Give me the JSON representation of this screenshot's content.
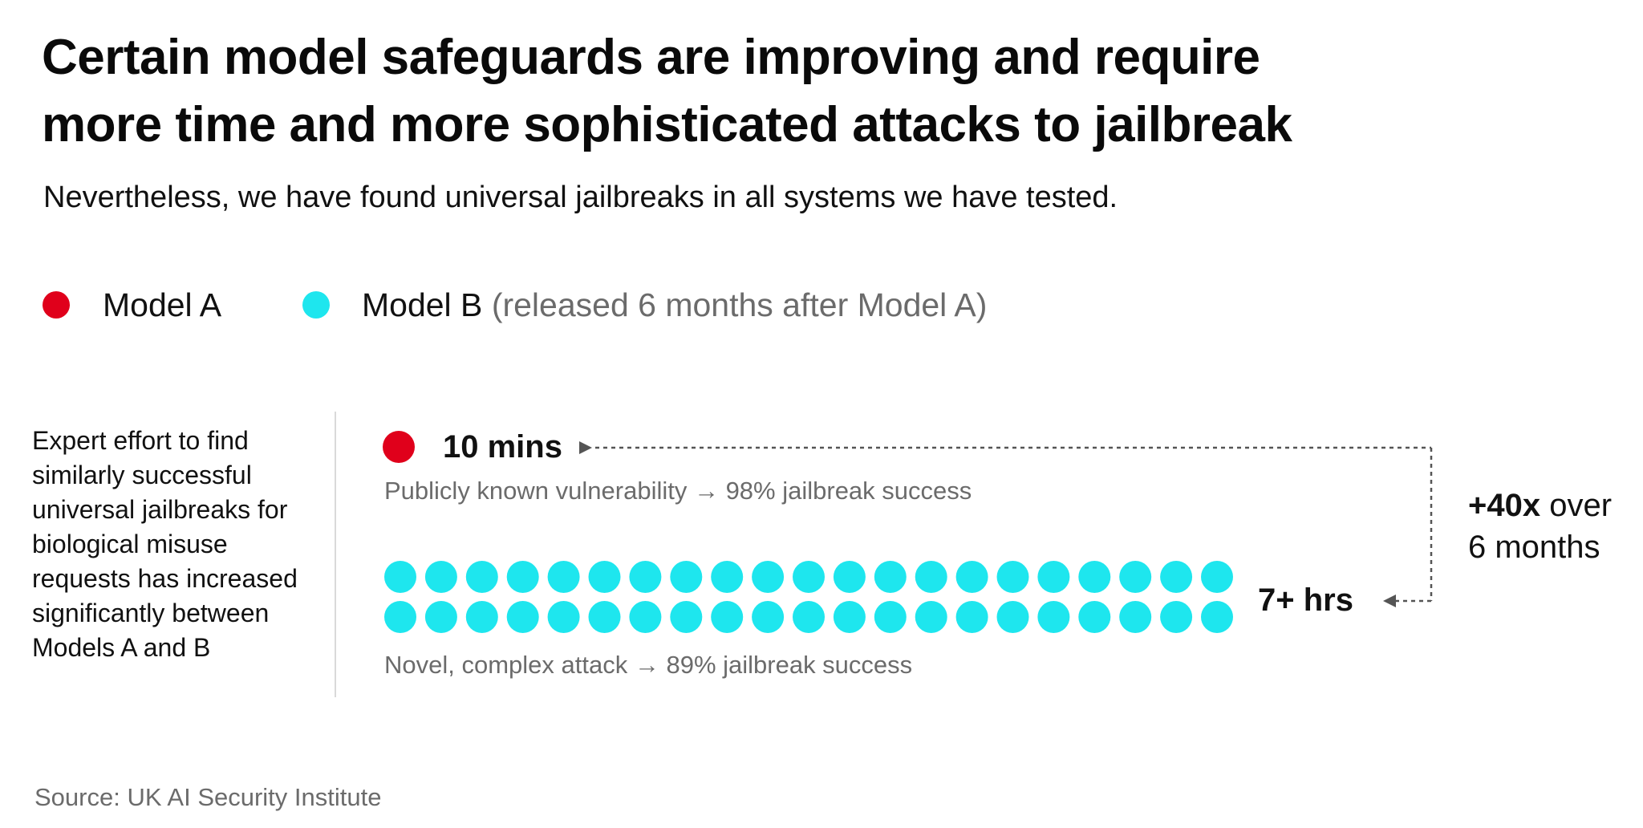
{
  "title": {
    "line1": "Certain model safeguards are improving and require",
    "line2": "more time and more sophisticated attacks to jailbreak"
  },
  "subtitle": "Nevertheless, we have found universal jailbreaks in all systems we have tested.",
  "legend": {
    "model_a": {
      "label": "Model A",
      "color": "#e0001b"
    },
    "model_b": {
      "label": "Model B",
      "note": "(released 6 months after Model A)",
      "color": "#1ee6ee"
    }
  },
  "side_text": [
    "Expert effort to find",
    "similarly successful",
    "universal jailbreaks for",
    "biological misuse",
    "requests has increased",
    "significantly between",
    "Models A and B"
  ],
  "chart_data": {
    "type": "pictogram",
    "series": [
      {
        "name": "Model A",
        "effort_label": "10 mins",
        "dots": 1,
        "color": "#e0001b",
        "caption": "Publicly known vulnerability → 98% jailbreak success",
        "jailbreak_success_pct": 98
      },
      {
        "name": "Model B",
        "effort_label": "7+ hrs",
        "dots": 42,
        "dot_rows": 2,
        "color": "#1ee6ee",
        "caption": "Novel, complex attack → 89% jailbreak success",
        "jailbreak_success_pct": 89
      }
    ],
    "annotation": {
      "bold": "+40x",
      "rest": "over",
      "line2": "6 months"
    }
  },
  "source": "Source: UK AI Security Institute"
}
